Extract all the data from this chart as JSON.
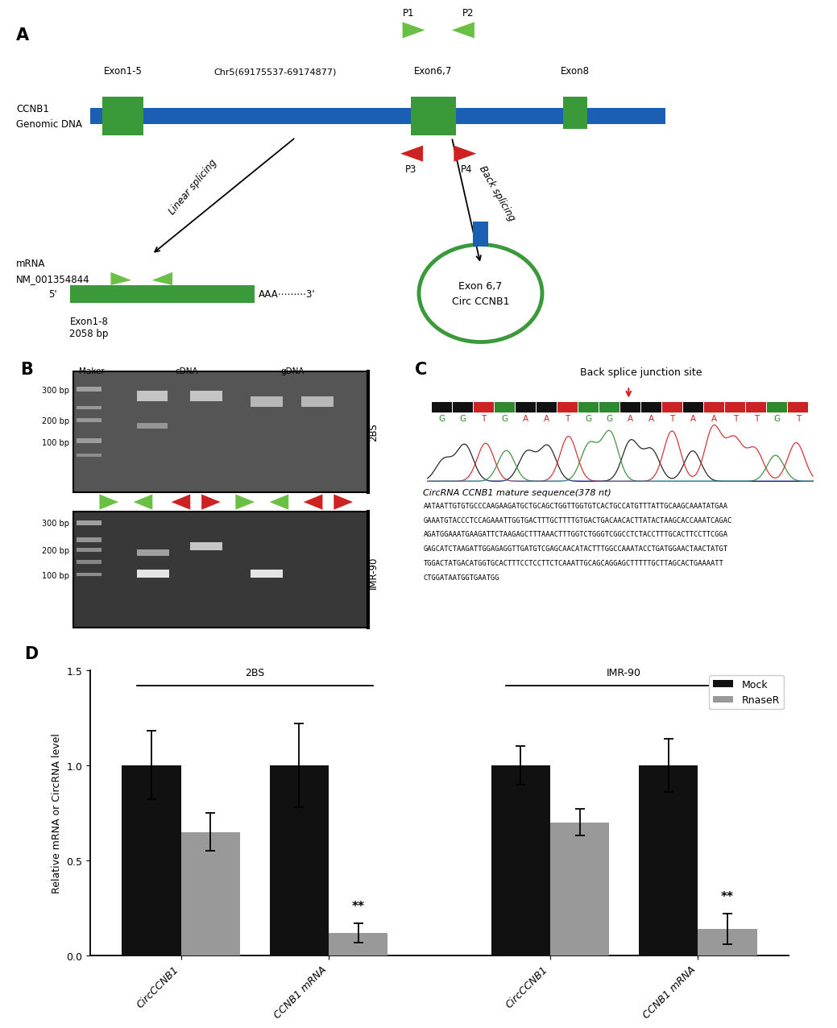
{
  "panel_A": {
    "genomic_bar_color": "#1a5fb4",
    "exon_color": "#3a9a3a",
    "genomic_label": "CCNB1\nGenomic DNA",
    "chr_label": "Chr5(69175537-69174877)",
    "exon_label_15": "Exon1-5",
    "exon_label_67": "Exon6,7",
    "exon_label_8": "Exon8",
    "p1_label": "P1",
    "p2_label": "P2",
    "p3_label": "P3",
    "p4_label": "P4",
    "primer_green_color": "#6abf45",
    "primer_red_color": "#cc2222",
    "arrow_linear": "Linear splicing",
    "arrow_back": "Back splicing",
    "mrna_label": "mRNA\nNM_001354844",
    "exon_size_label": "Exon1-8\n2058 bp",
    "circ_label": "Exon 6,7\nCirc CCNB1",
    "circ_color": "#3a9a3a"
  },
  "panel_B": {
    "maker_label": "Maker",
    "cdna_label": "cDNA",
    "gdna_label": "gDNA",
    "bp300": "300 bp",
    "bp200": "200 bp",
    "bp100": "100 bp",
    "label_2bs": "2BS",
    "label_imr90": "IMR-90",
    "gel_bg": "#555555",
    "gel_bg2": "#383838",
    "band_color_bright": "#d8d8d8",
    "band_color_mid": "#b0b0b0",
    "ladder_color": "#aaaaaa"
  },
  "panel_C": {
    "title": "Back splice junction site",
    "arrow_color": "#cc2222",
    "seq_label": "CircRNA CCNB1 mature sequence(378 nt)",
    "bases": [
      "G",
      "G",
      "T",
      "G",
      "A",
      "A",
      "T",
      "G",
      "G",
      "A",
      "A",
      "T",
      "A",
      "A",
      "T",
      "T",
      "G",
      "T"
    ],
    "sq_colors": [
      "#111111",
      "#111111",
      "#cc2222",
      "#2d8a2d",
      "#111111",
      "#111111",
      "#cc2222",
      "#2d8a2d",
      "#2d8a2d",
      "#111111",
      "#111111",
      "#cc2222",
      "#111111",
      "#cc2222",
      "#cc2222",
      "#cc2222",
      "#2d8a2d",
      "#cc2222"
    ],
    "seq_lines": [
      "AATAATTGTGTGCCCAAGAAGATGCTGCAGCTGGTTGGTGTCACTGCCATGTTTATTGCAAGCAAATATGAA",
      "GAAATGTACCCTCCAGAAATTGGTGACTTTGCTTTTGTGACTGACAACACTTATACTAAGCACCAAATCAGAC",
      "AGATGGAAATGAAGATTCTAAGAGCTTTAAACTTTGGTCTGGGTCGGCCTCTACCTTTGCACTTCCTTCGGA",
      "GAGCATCTAAGATTGGAGAGGTTGATGTCGAGCAACATACTTTGGCCAAATACCTGATGGAACTAACTATGT",
      "TGGACTATGACATGGTGCACTTTCCTCCTTCTCAAATTGCAGCAGGAGCTTTTTGCTTAGCACTGAAAATT",
      "CTGGATAATGGTGAATGG"
    ]
  },
  "panel_D": {
    "categories": [
      "CircCCNB1",
      "CCNB1 mRNA",
      "CircCCNB1",
      "CCNB1 mRNA"
    ],
    "mock_values": [
      1.0,
      1.0,
      1.0,
      1.0
    ],
    "rnaser_values": [
      0.65,
      0.12,
      0.7,
      0.14
    ],
    "mock_errors": [
      0.18,
      0.22,
      0.1,
      0.14
    ],
    "rnaser_errors": [
      0.1,
      0.05,
      0.07,
      0.08
    ],
    "mock_color": "#111111",
    "rnaser_color": "#999999",
    "ylabel": "Relative mRNA or CircRNA level",
    "ylim": [
      0,
      1.5
    ],
    "yticks": [
      0.0,
      0.5,
      1.0,
      1.5
    ],
    "group_labels": [
      "2BS",
      "IMR-90"
    ],
    "legend_mock": "Mock",
    "legend_rnaser": "RnaseR",
    "significance": [
      "",
      "**",
      "",
      "**"
    ]
  }
}
